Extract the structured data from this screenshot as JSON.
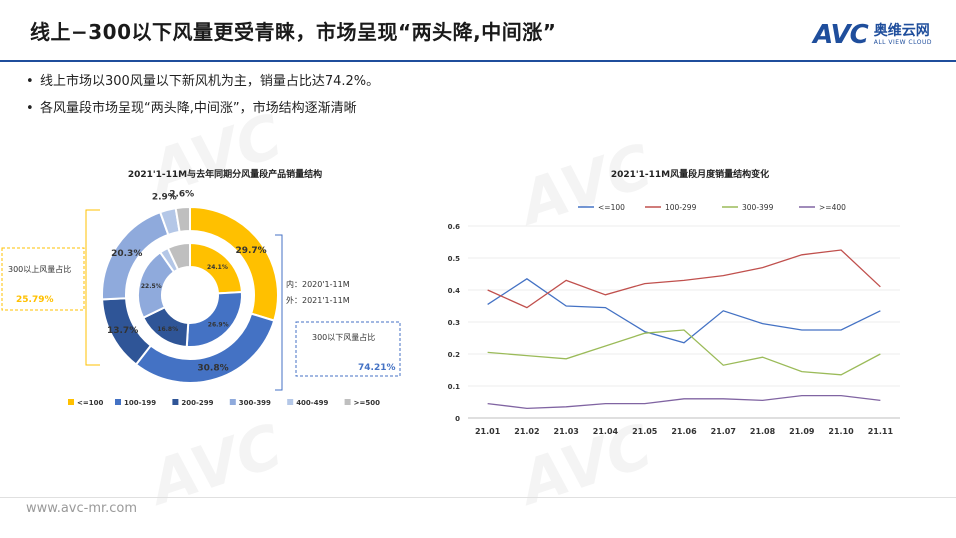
{
  "header": {
    "title": "线上−300以下风量更受青睐，市场呈现“两头降,中间涨”",
    "logo_avc": "AVC",
    "logo_cn": "奥维云网",
    "logo_en": "ALL VIEW CLOUD"
  },
  "bullets": [
    "线上市场以300风量以下新风机为主，销量占比达74.2%。",
    "各风量段市场呈现“两头降,中间涨”，市场结构逐渐清晰"
  ],
  "footer": {
    "url": "www.avc-mr.com"
  },
  "colors": {
    "accent": "#1f4e9c",
    "c1": "#ffc000",
    "c2": "#4472c4",
    "c3": "#2f5597",
    "c4": "#8faadc",
    "c5": "#b4c7e7",
    "c6": "#bfbfbf"
  },
  "chart_data": [
    {
      "type": "pie",
      "title": "2021'1-11M与去年同期分风量段产品销量结构",
      "categories": [
        "<=100",
        "100-199",
        "200-299",
        "300-399",
        "400-499",
        ">=500"
      ],
      "series": [
        {
          "name": "内：2020'1-11M",
          "values": [
            24.1,
            26.9,
            16.8,
            22.5,
            2.7,
            7.0
          ]
        },
        {
          "name": "外：2021'1-11M",
          "values": [
            29.7,
            30.8,
            13.7,
            20.3,
            2.9,
            2.6
          ]
        }
      ],
      "outer_labels": [
        "29.7%",
        "30.8%",
        "13.7%",
        "20.3%",
        "2.9%",
        "2.6%"
      ],
      "inner_labels": [
        "24.1%",
        "26.9%",
        "16.8%",
        "22.5%",
        "",
        ""
      ],
      "annotations": {
        "left_label": "300以上风量占比",
        "left_value": "25.79%",
        "inner_caption": "内：2020'1-11M",
        "outer_caption": "外：2021'1-11M",
        "right_label": "300以下风量占比",
        "right_value": "74.21%"
      },
      "legend": [
        "<=100",
        "100-199",
        "200-299",
        "300-399",
        "400-499",
        ">=500"
      ],
      "legend_position": "bottom"
    },
    {
      "type": "line",
      "title": "2021'1-11M风量段月度销量结构变化",
      "x": [
        "21.01",
        "21.02",
        "21.03",
        "21.04",
        "21.05",
        "21.06",
        "21.07",
        "21.08",
        "21.09",
        "21.10",
        "21.11"
      ],
      "ylim": [
        0,
        0.6
      ],
      "yticks": [
        "0",
        "0.1",
        "0.2",
        "0.3",
        "0.4",
        "0.5",
        "0.6"
      ],
      "series": [
        {
          "name": "<=100",
          "color": "#4472c4",
          "values": [
            0.355,
            0.435,
            0.35,
            0.345,
            0.27,
            0.235,
            0.335,
            0.295,
            0.275,
            0.275,
            0.335
          ]
        },
        {
          "name": "100-299",
          "color": "#c0504d",
          "values": [
            0.4,
            0.345,
            0.43,
            0.385,
            0.42,
            0.43,
            0.445,
            0.47,
            0.51,
            0.525,
            0.41
          ]
        },
        {
          "name": "300-399",
          "color": "#9bbb59",
          "values": [
            0.205,
            0.195,
            0.185,
            0.225,
            0.265,
            0.275,
            0.165,
            0.19,
            0.145,
            0.135,
            0.2
          ]
        },
        {
          "name": ">=400",
          "color": "#8064a2",
          "values": [
            0.045,
            0.03,
            0.035,
            0.045,
            0.045,
            0.06,
            0.06,
            0.055,
            0.07,
            0.07,
            0.055
          ]
        }
      ],
      "legend_position": "top",
      "grid": true
    }
  ]
}
